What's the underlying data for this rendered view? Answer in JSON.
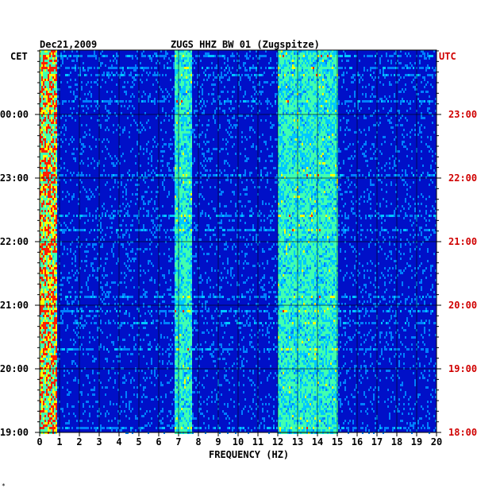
{
  "chart_data": {
    "type": "heatmap",
    "date": "Dec21,2009",
    "title": "ZUGS HHZ BW 01 (Zugspitze)",
    "xlabel": "FREQUENCY (HZ)",
    "left_axis_label": "CET",
    "right_axis_label": "UTC",
    "xlim": [
      0,
      20
    ],
    "x_ticks": [
      "0",
      "1",
      "2",
      "3",
      "4",
      "5",
      "6",
      "7",
      "8",
      "9",
      "10",
      "11",
      "12",
      "13",
      "14",
      "15",
      "16",
      "17",
      "18",
      "19",
      "20"
    ],
    "left_ticks": [
      "00:00",
      "23:00",
      "22:00",
      "21:00",
      "20:00",
      "19:00"
    ],
    "right_ticks": [
      "23:00",
      "22:00",
      "21:00",
      "20:00",
      "19:00",
      "18:00"
    ],
    "colors": {
      "background": "#0010c8",
      "low": "#0030e0",
      "mid": "#00c8ff",
      "high": "#ffff00",
      "peak": "#ff2000",
      "right_axis": "#d00000"
    },
    "energy_bands_hz": [
      {
        "from": 0,
        "to": 0.8,
        "level": "high"
      },
      {
        "from": 6.8,
        "to": 7.6,
        "level": "mid"
      },
      {
        "from": 12,
        "to": 15,
        "level": "mid"
      }
    ],
    "grid": true
  },
  "footer_mark": "*"
}
